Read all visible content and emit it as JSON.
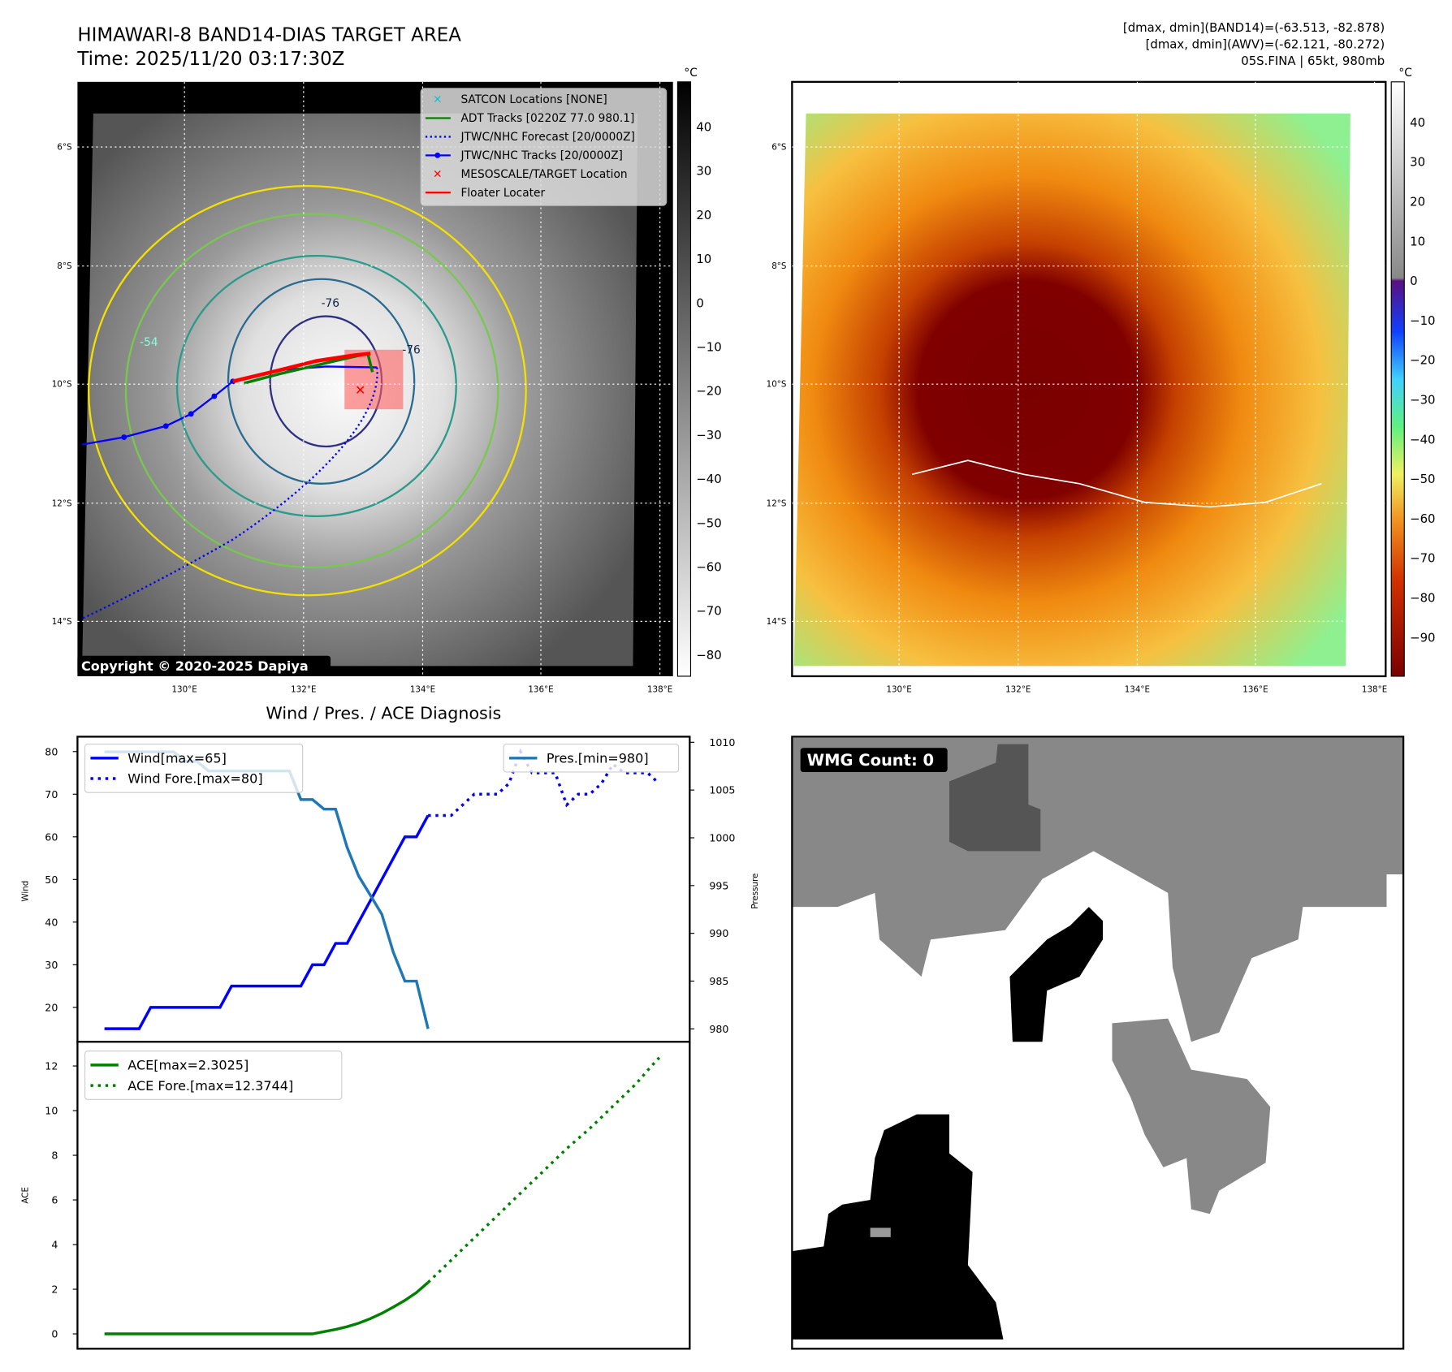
{
  "header": {
    "title": "HIMAWARI-8 BAND14-DIAS TARGET AREA",
    "time": "Time: 2025/11/20 03:17:30Z",
    "info_line1": "[dmax, dmin](BAND14)=(-63.513, -82.878)",
    "info_line2": "[dmax, dmin](AWV)=(-62.121, -80.272)",
    "info_line3": "05S.FINA | 65kt, 980mb"
  },
  "map": {
    "lat_ticks": [
      "6°S",
      "8°S",
      "10°S",
      "12°S",
      "14°S"
    ],
    "lon_ticks": [
      "130°E",
      "132°E",
      "134°E",
      "136°E",
      "138°E"
    ],
    "copyright": "Copyright © 2020-2025 Dapiya",
    "contour_labels": [
      "-54",
      "-76",
      "-76"
    ],
    "legend": [
      {
        "label": "SATCON Locations [NONE]",
        "color": "#17becf"
      },
      {
        "label": "ADT Tracks [0220Z 77.0 980.1]",
        "color": "#008000"
      },
      {
        "label": "JTWC/NHC Forecast [20/0000Z]",
        "color": "#0000ff"
      },
      {
        "label": "JTWC/NHC Tracks [20/0000Z]",
        "color": "#0000ff"
      },
      {
        "label": "MESOSCALE/TARGET Location",
        "color": "#ff0000"
      },
      {
        "label": "Floater Locater",
        "color": "#ff0000"
      }
    ],
    "colorbar_left": {
      "unit": "°C",
      "ticks": [
        "40",
        "30",
        "20",
        "10",
        "0",
        "−10",
        "−20",
        "−30",
        "−40",
        "−50",
        "−60",
        "−70",
        "−80"
      ]
    },
    "colorbar_right": {
      "unit": "°C",
      "ticks": [
        "40",
        "30",
        "20",
        "10",
        "0",
        "−10",
        "−20",
        "−30",
        "−40",
        "−50",
        "−60",
        "−70",
        "−80",
        "−90"
      ]
    }
  },
  "wmg": {
    "label": "WMG Count: 0"
  },
  "chart_data": [
    {
      "type": "line",
      "title": "Wind / Pres. / ACE Diagnosis",
      "ylabel": "Wind",
      "y2label": "Pressure",
      "ylim": [
        12,
        82
      ],
      "y2lim": [
        979,
        1010.5
      ],
      "yticks": [
        "20",
        "30",
        "40",
        "50",
        "60",
        "70",
        "80"
      ],
      "y2ticks": [
        "980",
        "985",
        "990",
        "995",
        "1000",
        "1005",
        "1010"
      ],
      "legend": [
        "Wind[max=65]",
        "Wind Fore.[max=80]",
        "Pres.[min=980]"
      ],
      "series": [
        {
          "name": "Wind[max=65]",
          "color": "#0000ff",
          "style": "solid",
          "x_start": 0,
          "values": [
            15,
            15,
            15,
            15,
            20,
            20,
            20,
            20,
            20,
            20,
            20,
            25,
            25,
            25,
            25,
            25,
            25,
            25,
            30,
            30,
            35,
            35,
            40,
            45,
            50,
            55,
            60,
            60,
            65
          ]
        },
        {
          "name": "Wind Fore.[max=80]",
          "color": "#0000ff",
          "style": "dotted",
          "x_start": 28,
          "values": [
            65,
            65,
            65,
            67.5,
            70,
            70,
            70,
            72.5,
            80,
            75,
            75,
            75,
            67.5,
            70,
            70,
            72.5,
            77,
            75,
            75,
            75,
            72.5
          ]
        },
        {
          "name": "Pres.[min=980]",
          "color": "#1f77b4",
          "style": "solid",
          "axis": "right",
          "x_start": 0,
          "values": [
            1009,
            1009,
            1009,
            1009,
            1009,
            1009,
            1009,
            1008,
            1008,
            1007,
            1007,
            1007,
            1007,
            1007,
            1007,
            1007,
            1007,
            1004,
            1004,
            1003,
            1003,
            999,
            996,
            994,
            992,
            988,
            985,
            985,
            980
          ]
        }
      ]
    },
    {
      "type": "line",
      "ylabel": "ACE",
      "ylim": [
        -0.5,
        13
      ],
      "yticks": [
        "0",
        "2",
        "4",
        "6",
        "8",
        "10",
        "12"
      ],
      "legend": [
        "ACE[max=2.3025]",
        "ACE Fore.[max=12.3744]"
      ],
      "series": [
        {
          "name": "ACE[max=2.3025]",
          "color": "#008000",
          "style": "solid",
          "x_start": 0,
          "values": [
            0,
            0,
            0,
            0,
            0,
            0,
            0,
            0,
            0,
            0,
            0,
            0,
            0,
            0,
            0,
            0,
            0,
            0,
            0,
            0.1,
            0.2,
            0.32,
            0.48,
            0.68,
            0.92,
            1.2,
            1.5,
            1.85,
            2.3025
          ]
        },
        {
          "name": "ACE Fore.[max=12.3744]",
          "color": "#008000",
          "style": "dotted",
          "x_start": 28,
          "values": [
            2.3025,
            2.8,
            3.3,
            3.8,
            4.3,
            4.8,
            5.3,
            5.8,
            6.3,
            6.8,
            7.3,
            7.8,
            8.3,
            8.75,
            9.2,
            9.7,
            10.2,
            10.7,
            11.2,
            11.8,
            12.3744
          ]
        }
      ]
    }
  ]
}
